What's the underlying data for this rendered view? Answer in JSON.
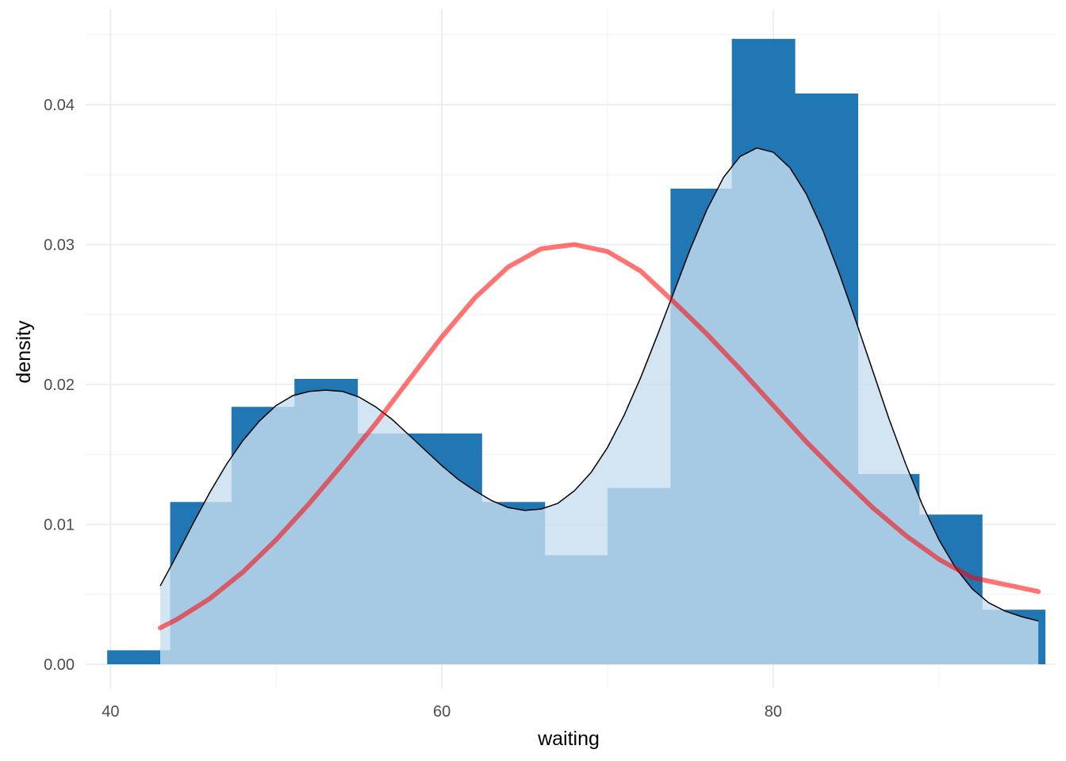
{
  "chart_data": {
    "type": "bar",
    "xlabel": "waiting",
    "ylabel": "density",
    "xlim": [
      38.5,
      97
    ],
    "ylim": [
      -0.0017,
      0.0468
    ],
    "grid": true,
    "x_ticks": [
      40,
      60,
      80
    ],
    "x_tick_labels": [
      "40",
      "60",
      "80"
    ],
    "y_ticks": [
      0,
      0.01,
      0.02,
      0.03,
      0.04
    ],
    "y_tick_labels": [
      "0.00",
      "0.01",
      "0.02",
      "0.03",
      "0.04"
    ],
    "histogram": {
      "bin_edges": [
        39.8,
        43.6,
        47.3,
        51.1,
        54.9,
        58.7,
        62.4,
        66.2,
        70.0,
        73.8,
        77.5,
        81.3,
        85.1,
        88.8,
        92.6,
        96.4
      ],
      "densities": [
        0.001,
        0.0116,
        0.0184,
        0.0204,
        0.0165,
        0.0165,
        0.0116,
        0.0078,
        0.0126,
        0.034,
        0.0447,
        0.0408,
        0.0136,
        0.0107,
        0.0039
      ],
      "color": "#2077b4"
    },
    "density_curve": {
      "color": "#000000",
      "fill": "#c8dff0",
      "x": [
        43,
        44,
        45,
        46,
        47,
        48,
        49,
        50,
        51,
        52,
        53,
        54,
        55,
        56,
        57,
        58,
        59,
        60,
        61,
        62,
        63,
        64,
        65,
        66,
        67,
        68,
        69,
        70,
        71,
        72,
        73,
        74,
        75,
        76,
        77,
        78,
        79,
        80,
        81,
        82,
        83,
        84,
        85,
        86,
        87,
        88,
        89,
        90,
        91,
        92,
        93,
        94,
        95,
        96
      ],
      "y": [
        0.0056,
        0.0078,
        0.0101,
        0.0123,
        0.0143,
        0.016,
        0.0174,
        0.0185,
        0.0192,
        0.0195,
        0.0196,
        0.0195,
        0.0191,
        0.0184,
        0.0175,
        0.0164,
        0.0153,
        0.0142,
        0.0132,
        0.0124,
        0.0117,
        0.0112,
        0.011,
        0.0111,
        0.0115,
        0.0124,
        0.0137,
        0.0155,
        0.0178,
        0.0205,
        0.0235,
        0.0266,
        0.0297,
        0.0325,
        0.0348,
        0.0363,
        0.0369,
        0.0366,
        0.0355,
        0.0336,
        0.031,
        0.0279,
        0.0245,
        0.021,
        0.0175,
        0.0143,
        0.0114,
        0.0089,
        0.0069,
        0.0054,
        0.0044,
        0.0038,
        0.0034,
        0.0031
      ]
    },
    "normal_curve": {
      "color": "#ff0000",
      "x": [
        43,
        44,
        46,
        48,
        50,
        52,
        54,
        56,
        58,
        60,
        62,
        64,
        66,
        68,
        70,
        72,
        74,
        76,
        78,
        80,
        82,
        84,
        86,
        88,
        90,
        92,
        94,
        96
      ],
      "y": [
        0.0026,
        0.0032,
        0.0047,
        0.0066,
        0.0089,
        0.0115,
        0.0143,
        0.0172,
        0.0203,
        0.0234,
        0.0262,
        0.0284,
        0.0297,
        0.03,
        0.0295,
        0.0281,
        0.0259,
        0.0236,
        0.0211,
        0.0185,
        0.0159,
        0.0135,
        0.0112,
        0.0092,
        0.0075,
        0.0062,
        0.0057,
        0.0052
      ]
    }
  }
}
